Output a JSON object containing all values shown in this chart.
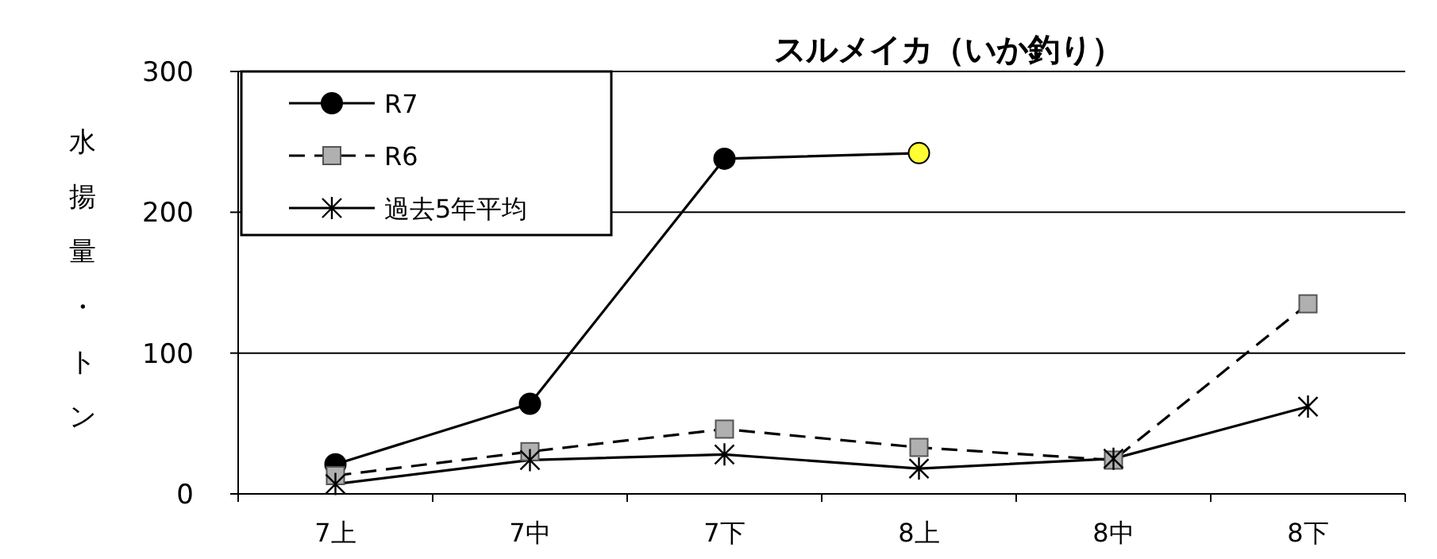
{
  "chart_data": {
    "type": "line",
    "title": "スルメイカ（いか釣り）",
    "ylabel": "水揚量・トン",
    "categories": [
      "7上",
      "7中",
      "7下",
      "8上",
      "8中",
      "8下"
    ],
    "ylim": [
      0,
      300
    ],
    "yticks": [
      0,
      100,
      200,
      300
    ],
    "grid": "y",
    "legend": "top left",
    "series": [
      {
        "name": "R7",
        "color": "#000000",
        "marker": "circle",
        "line_style": "solid",
        "colors": [
          "#000000",
          "#000000",
          "#000000",
          "#ffff33",
          null,
          null
        ],
        "values": [
          21,
          64,
          238,
          242,
          null,
          null
        ]
      },
      {
        "name": "R6",
        "color": "#000000",
        "marker": "square",
        "line_style": "dashed",
        "colors": [
          "#b0b0b0",
          "#b0b0b0",
          "#b0b0b0",
          "#b0b0b0",
          "#b0b0b0",
          "#b0b0b0"
        ],
        "values": [
          13,
          30,
          46,
          33,
          24,
          135
        ]
      },
      {
        "name": "過去5年平均",
        "color": "#000000",
        "marker": "cross",
        "line_style": "solid",
        "values": [
          7,
          24,
          28,
          18,
          25,
          62
        ]
      }
    ]
  }
}
